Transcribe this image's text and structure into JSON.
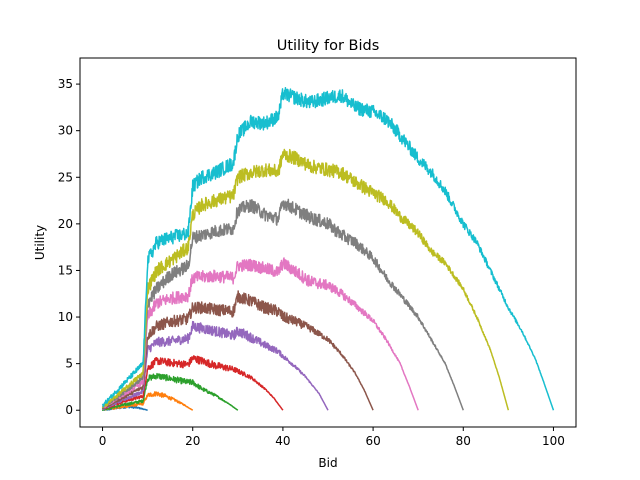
{
  "chart_data": {
    "type": "line",
    "title": "Utility for Bids",
    "xlabel": "Bid",
    "ylabel": "Utility",
    "xlim": [
      -5,
      105
    ],
    "ylim": [
      -1.8,
      37.8
    ],
    "xticks": [
      0,
      20,
      40,
      60,
      80,
      100
    ],
    "yticks": [
      0,
      5,
      10,
      15,
      20,
      25,
      30,
      35
    ],
    "grid": false,
    "legend": "none",
    "series": [
      {
        "color": "#1f77b4",
        "max_bid": 10,
        "points": [
          [
            0,
            0.05
          ],
          [
            2,
            0.15
          ],
          [
            4,
            0.3
          ],
          [
            5,
            0.35
          ],
          [
            6,
            0.38
          ],
          [
            8,
            0.25
          ],
          [
            10,
            0.0
          ]
        ]
      },
      {
        "color": "#ff7f0e",
        "max_bid": 20,
        "points": [
          [
            0,
            0.1
          ],
          [
            5,
            0.4
          ],
          [
            9,
            0.7
          ],
          [
            10,
            1.6
          ],
          [
            12,
            1.8
          ],
          [
            14,
            1.5
          ],
          [
            16,
            1.1
          ],
          [
            18,
            0.6
          ],
          [
            20,
            0.0
          ]
        ]
      },
      {
        "color": "#2ca02c",
        "max_bid": 30,
        "points": [
          [
            0,
            0.1
          ],
          [
            5,
            0.6
          ],
          [
            9,
            1.0
          ],
          [
            10,
            3.4
          ],
          [
            12,
            3.7
          ],
          [
            15,
            3.4
          ],
          [
            19,
            3.0
          ],
          [
            20,
            3.0
          ],
          [
            22,
            2.3
          ],
          [
            25,
            1.6
          ],
          [
            28,
            0.7
          ],
          [
            30,
            0.0
          ]
        ]
      },
      {
        "color": "#d62728",
        "max_bid": 40,
        "points": [
          [
            0,
            0.2
          ],
          [
            5,
            1.0
          ],
          [
            9,
            1.5
          ],
          [
            10,
            4.5
          ],
          [
            12,
            5.3
          ],
          [
            15,
            5.1
          ],
          [
            19,
            4.9
          ],
          [
            20,
            5.6
          ],
          [
            22,
            5.3
          ],
          [
            25,
            4.8
          ],
          [
            29,
            4.4
          ],
          [
            30,
            4.2
          ],
          [
            33,
            3.5
          ],
          [
            36,
            2.3
          ],
          [
            38,
            1.3
          ],
          [
            40,
            0.0
          ]
        ]
      },
      {
        "color": "#9467bd",
        "max_bid": 50,
        "points": [
          [
            0,
            0.2
          ],
          [
            5,
            1.2
          ],
          [
            9,
            2.0
          ],
          [
            10,
            6.5
          ],
          [
            12,
            7.3
          ],
          [
            15,
            7.4
          ],
          [
            19,
            7.7
          ],
          [
            20,
            9.0
          ],
          [
            22,
            8.8
          ],
          [
            25,
            8.5
          ],
          [
            29,
            8.0
          ],
          [
            30,
            8.5
          ],
          [
            33,
            7.8
          ],
          [
            36,
            7.0
          ],
          [
            39,
            6.3
          ],
          [
            40,
            5.8
          ],
          [
            42,
            5.0
          ],
          [
            45,
            3.6
          ],
          [
            48,
            1.8
          ],
          [
            50,
            0.0
          ]
        ]
      },
      {
        "color": "#8c564b",
        "max_bid": 60,
        "points": [
          [
            0,
            0.2
          ],
          [
            5,
            1.5
          ],
          [
            9,
            2.5
          ],
          [
            10,
            8.0
          ],
          [
            12,
            9.0
          ],
          [
            15,
            9.5
          ],
          [
            19,
            9.8
          ],
          [
            20,
            11.0
          ],
          [
            22,
            11.0
          ],
          [
            25,
            10.8
          ],
          [
            29,
            10.6
          ],
          [
            30,
            12.2
          ],
          [
            33,
            11.7
          ],
          [
            36,
            11.0
          ],
          [
            39,
            10.6
          ],
          [
            40,
            10.0
          ],
          [
            43,
            9.5
          ],
          [
            46,
            8.8
          ],
          [
            50,
            7.6
          ],
          [
            53,
            6.0
          ],
          [
            56,
            4.0
          ],
          [
            58,
            2.2
          ],
          [
            60,
            0.0
          ]
        ]
      },
      {
        "color": "#e377c2",
        "max_bid": 70,
        "points": [
          [
            0,
            0.3
          ],
          [
            5,
            1.8
          ],
          [
            9,
            3.0
          ],
          [
            10,
            10.0
          ],
          [
            12,
            11.5
          ],
          [
            15,
            12.0
          ],
          [
            19,
            12.3
          ],
          [
            20,
            14.2
          ],
          [
            22,
            14.3
          ],
          [
            25,
            14.4
          ],
          [
            29,
            14.2
          ],
          [
            30,
            15.5
          ],
          [
            33,
            15.6
          ],
          [
            36,
            15.2
          ],
          [
            39,
            14.8
          ],
          [
            40,
            15.8
          ],
          [
            43,
            14.8
          ],
          [
            46,
            13.8
          ],
          [
            50,
            13.4
          ],
          [
            53,
            12.5
          ],
          [
            56,
            11.3
          ],
          [
            60,
            9.6
          ],
          [
            63,
            7.5
          ],
          [
            66,
            5.0
          ],
          [
            68,
            2.6
          ],
          [
            70,
            0.0
          ]
        ]
      },
      {
        "color": "#7f7f7f",
        "max_bid": 80,
        "points": [
          [
            0,
            0.3
          ],
          [
            5,
            2.0
          ],
          [
            9,
            3.5
          ],
          [
            10,
            11.5
          ],
          [
            12,
            13.0
          ],
          [
            15,
            14.5
          ],
          [
            19,
            15.5
          ],
          [
            20,
            18.5
          ],
          [
            22,
            18.8
          ],
          [
            25,
            19.2
          ],
          [
            29,
            19.5
          ],
          [
            30,
            21.5
          ],
          [
            33,
            22.0
          ],
          [
            36,
            21.0
          ],
          [
            39,
            20.5
          ],
          [
            40,
            22.3
          ],
          [
            43,
            21.5
          ],
          [
            46,
            20.7
          ],
          [
            50,
            20.0
          ],
          [
            53,
            18.8
          ],
          [
            56,
            18.0
          ],
          [
            60,
            16.3
          ],
          [
            63,
            14.2
          ],
          [
            66,
            12.4
          ],
          [
            70,
            10.0
          ],
          [
            73,
            7.5
          ],
          [
            76,
            5.0
          ],
          [
            78,
            2.6
          ],
          [
            80,
            0.0
          ]
        ]
      },
      {
        "color": "#bcbd22",
        "max_bid": 90,
        "points": [
          [
            0,
            0.3
          ],
          [
            5,
            2.3
          ],
          [
            9,
            4.0
          ],
          [
            10,
            13.0
          ],
          [
            12,
            15.0
          ],
          [
            15,
            16.0
          ],
          [
            19,
            17.5
          ],
          [
            20,
            21.0
          ],
          [
            22,
            22.0
          ],
          [
            25,
            22.5
          ],
          [
            29,
            23.0
          ],
          [
            30,
            25.0
          ],
          [
            33,
            25.5
          ],
          [
            36,
            25.8
          ],
          [
            39,
            25.6
          ],
          [
            40,
            27.5
          ],
          [
            43,
            27.0
          ],
          [
            46,
            26.2
          ],
          [
            50,
            25.8
          ],
          [
            53,
            25.5
          ],
          [
            56,
            24.5
          ],
          [
            60,
            23.3
          ],
          [
            63,
            22.5
          ],
          [
            66,
            20.8
          ],
          [
            70,
            19.0
          ],
          [
            73,
            17.0
          ],
          [
            76,
            15.8
          ],
          [
            80,
            13.0
          ],
          [
            83,
            10.0
          ],
          [
            86,
            6.5
          ],
          [
            88,
            3.5
          ],
          [
            90,
            0.0
          ]
        ]
      },
      {
        "color": "#17becf",
        "max_bid": 100,
        "points": [
          [
            0,
            0.5
          ],
          [
            5,
            3.0
          ],
          [
            9,
            5.0
          ],
          [
            10,
            16.0
          ],
          [
            12,
            18.0
          ],
          [
            15,
            18.5
          ],
          [
            19,
            19.0
          ],
          [
            20,
            24.0
          ],
          [
            22,
            25.0
          ],
          [
            25,
            25.5
          ],
          [
            29,
            26.5
          ],
          [
            30,
            29.5
          ],
          [
            33,
            31.0
          ],
          [
            36,
            30.8
          ],
          [
            39,
            31.5
          ],
          [
            40,
            34.0
          ],
          [
            43,
            33.5
          ],
          [
            46,
            33.0
          ],
          [
            50,
            33.5
          ],
          [
            53,
            33.8
          ],
          [
            56,
            32.5
          ],
          [
            60,
            32.0
          ],
          [
            63,
            31.2
          ],
          [
            66,
            29.5
          ],
          [
            70,
            27.0
          ],
          [
            73,
            25.5
          ],
          [
            76,
            23.5
          ],
          [
            80,
            20.0
          ],
          [
            83,
            18.0
          ],
          [
            86,
            15.0
          ],
          [
            90,
            11.0
          ],
          [
            93,
            8.5
          ],
          [
            96,
            5.5
          ],
          [
            98,
            2.8
          ],
          [
            100,
            0.0
          ]
        ]
      }
    ]
  }
}
